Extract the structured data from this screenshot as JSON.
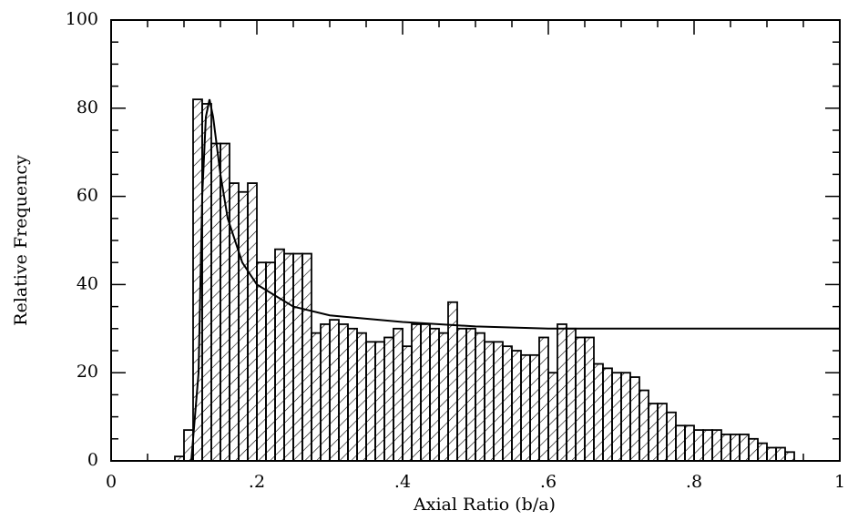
{
  "chart_data": {
    "type": "histogram",
    "xlabel": "Axial Ratio (b/a)",
    "ylabel": "Relative Frequency",
    "bins": [
      0.0875,
      0.1,
      0.1125,
      0.125,
      0.1375,
      0.15,
      0.1625,
      0.175,
      0.1875,
      0.2,
      0.2125,
      0.225,
      0.2375,
      0.25,
      0.2625,
      0.275,
      0.2875,
      0.3,
      0.3125,
      0.325,
      0.3375,
      0.35,
      0.3625,
      0.375,
      0.3875,
      0.4,
      0.4125,
      0.425,
      0.4375,
      0.45,
      0.4625,
      0.475,
      0.4875,
      0.5,
      0.5125,
      0.525,
      0.5375,
      0.55,
      0.5625,
      0.575,
      0.5875,
      0.6,
      0.6125,
      0.625,
      0.6375,
      0.65,
      0.6625,
      0.675,
      0.6875,
      0.7,
      0.7125,
      0.725,
      0.7375,
      0.75,
      0.7625,
      0.775,
      0.7875,
      0.8,
      0.8125,
      0.825,
      0.8375,
      0.85,
      0.8625,
      0.875,
      0.8875,
      0.9,
      0.9125,
      0.925,
      0.9375
    ],
    "values": [
      1,
      7,
      82,
      81,
      72,
      72,
      63,
      61,
      63,
      45,
      45,
      48,
      47,
      47,
      47,
      29,
      31,
      32,
      31,
      30,
      29,
      27,
      27,
      28,
      30,
      26,
      31,
      31,
      30,
      29,
      36,
      30,
      30,
      29,
      27,
      27,
      26,
      25,
      24,
      24,
      28,
      20,
      31,
      30,
      28,
      28,
      22,
      21,
      20,
      20,
      19,
      16,
      13,
      13,
      11,
      8,
      8,
      7,
      7,
      7,
      6,
      6,
      6,
      5,
      4,
      3,
      3,
      2
    ],
    "hatch": true,
    "curve": {
      "x": [
        0.11,
        0.12,
        0.125,
        0.13,
        0.135,
        0.14,
        0.15,
        0.16,
        0.18,
        0.2,
        0.25,
        0.3,
        0.4,
        0.5,
        0.6,
        0.8,
        1.0
      ],
      "y": [
        0,
        20,
        60,
        78,
        82,
        78,
        65,
        55,
        45,
        40,
        35,
        33,
        31.5,
        30.5,
        30,
        30,
        30
      ]
    },
    "xlim": [
      0,
      1
    ],
    "ylim": [
      0,
      100
    ],
    "xticks": [
      0,
      {
        "value": 0.2,
        "label": ".2"
      },
      {
        "value": 0.4,
        "label": ".4"
      },
      {
        "value": 0.6,
        "label": ".6"
      },
      {
        "value": 0.8,
        "label": ".8"
      },
      1
    ],
    "yticks": [
      0,
      20,
      40,
      60,
      80,
      100
    ],
    "xminorticks": [
      0.05,
      0.1,
      0.15,
      0.25,
      0.3,
      0.35,
      0.45,
      0.5,
      0.55,
      0.65,
      0.7,
      0.75,
      0.85,
      0.9,
      0.95
    ],
    "yminorticks": [
      5,
      10,
      15,
      25,
      30,
      35,
      45,
      50,
      55,
      65,
      70,
      75,
      85,
      90,
      95
    ]
  }
}
